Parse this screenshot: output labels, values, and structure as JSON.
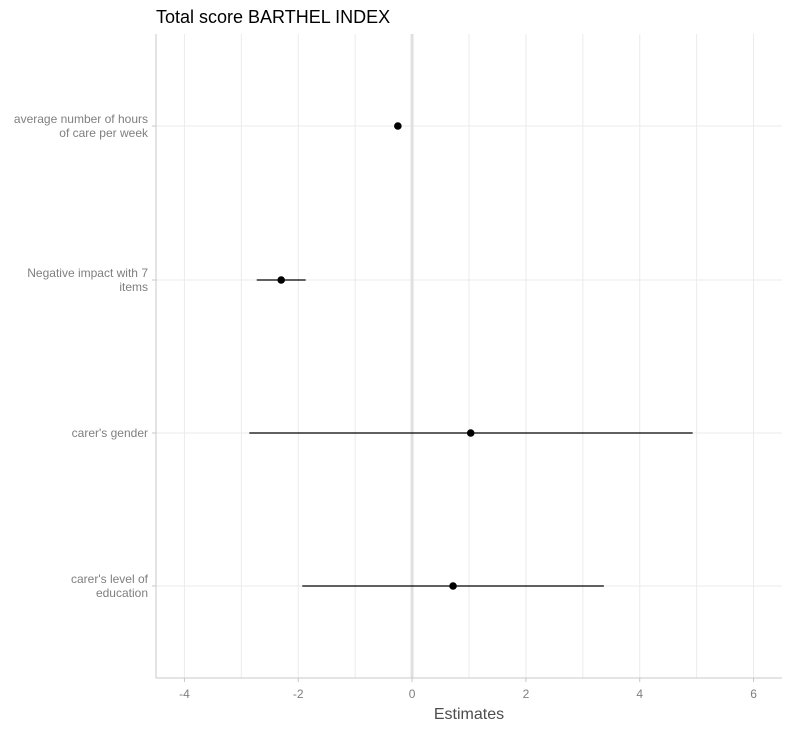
{
  "chart_data": {
    "type": "forest",
    "title": "Total score BARTHEL INDEX",
    "xlabel": "Estimates",
    "ylabel": "",
    "xlim": [
      -4.5,
      6.5
    ],
    "xticks": [
      -4,
      -2,
      0,
      2,
      4,
      6
    ],
    "xtick_labels": [
      "-4",
      "-2",
      "0",
      "2",
      "4",
      "6"
    ],
    "reference_line": 0,
    "grid": true,
    "terms": [
      {
        "label_lines": [
          "average number of hours",
          "of care per week"
        ],
        "estimate": -0.25,
        "ci_low": -0.25,
        "ci_high": -0.25
      },
      {
        "label_lines": [
          "Negative impact with 7",
          "items"
        ],
        "estimate": -2.3,
        "ci_low": -2.73,
        "ci_high": -1.87
      },
      {
        "label_lines": [
          "carer's gender"
        ],
        "estimate": 1.03,
        "ci_low": -2.86,
        "ci_high": 4.93
      },
      {
        "label_lines": [
          "carer's level of",
          "education"
        ],
        "estimate": 0.72,
        "ci_low": -1.93,
        "ci_high": 3.37
      }
    ],
    "colors": {
      "point": "#000000",
      "line": "#000000",
      "grid": "#ebebeb",
      "zero_line": "#e0e0e0",
      "axis": "#c8c8c8",
      "tick_text": "#7f7f7f",
      "title_text": "#000000"
    }
  }
}
